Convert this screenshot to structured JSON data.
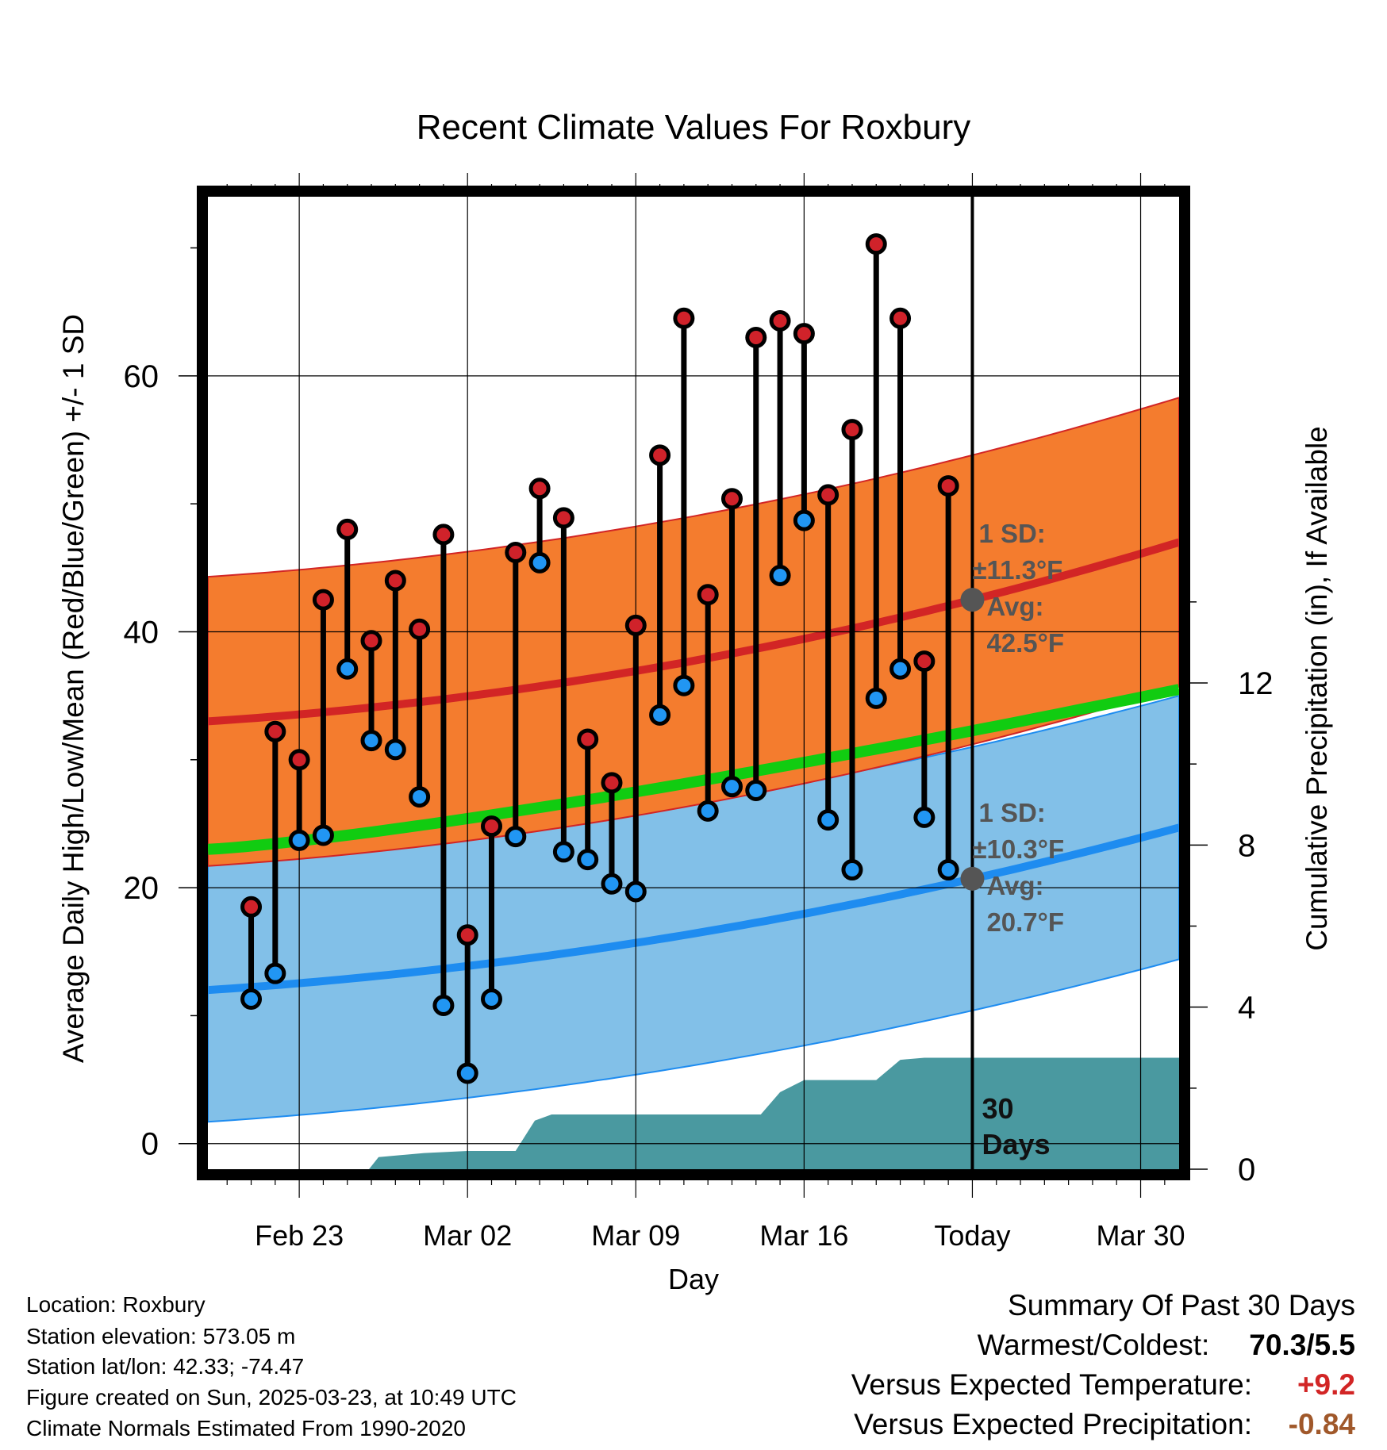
{
  "chart_data": {
    "type": "line",
    "title": "Recent Climate Values For Roxbury",
    "xlabel": "Day",
    "ylabel": "Average Daily High/Low/Mean (Red/Blue/Green) +/- 1 SD",
    "y2label": "Cumulative Precipitation (in), If Available",
    "x_ticks": [
      "Feb 23",
      "Mar 02",
      "Mar 09",
      "Mar 16",
      "Today",
      "Mar 30"
    ],
    "x_tick_days": [
      3,
      10,
      17,
      24,
      31,
      38
    ],
    "xlim": [
      -0.8,
      39.6
    ],
    "y_ticks": [
      "0",
      "20",
      "40",
      "60"
    ],
    "y_tick_values": [
      0,
      20,
      40,
      60
    ],
    "ylim": [
      -2,
      74
    ],
    "y2_ticks": [
      "0",
      "4",
      "8",
      "12"
    ],
    "y2_tick_values": [
      0,
      4,
      8,
      12
    ],
    "y2lim": [
      0,
      24
    ],
    "grid": true,
    "days": [
      1,
      2,
      3,
      4,
      5,
      6,
      7,
      8,
      9,
      10,
      11,
      12,
      13,
      14,
      15,
      16,
      17,
      18,
      19,
      20,
      21,
      22,
      23,
      24,
      25,
      26,
      27,
      28,
      29,
      30
    ],
    "highs": [
      18.5,
      32.2,
      30.0,
      42.5,
      48.0,
      39.3,
      44.0,
      40.2,
      47.6,
      16.3,
      24.8,
      46.2,
      51.2,
      48.9,
      31.6,
      28.2,
      40.5,
      53.8,
      64.5,
      42.9,
      50.4,
      63.0,
      64.3,
      63.3,
      50.7,
      55.8,
      70.3,
      64.5,
      37.7,
      51.4
    ],
    "lows": [
      11.3,
      13.3,
      23.7,
      24.1,
      37.1,
      31.5,
      30.8,
      27.1,
      10.8,
      5.5,
      11.3,
      24.0,
      45.4,
      22.8,
      22.2,
      20.3,
      19.7,
      33.5,
      35.8,
      26.0,
      27.9,
      27.6,
      44.4,
      48.7,
      25.3,
      21.4,
      34.8,
      37.1,
      25.5,
      21.4
    ],
    "normal_high": {
      "name": "Avg high",
      "start": 33.0,
      "today": 42.5,
      "end": 47.0
    },
    "normal_low": {
      "name": "Avg low",
      "start": 12.0,
      "today": 20.7,
      "end": 24.7
    },
    "normal_mean": {
      "start": 23.0,
      "end": 35.5
    },
    "high_sd": 11.3,
    "low_sd": 10.3,
    "precip_cumulative": {
      "days": [
        -0.8,
        5.9,
        6.3,
        8.2,
        10.0,
        12.0,
        12.8,
        13.5,
        22.2,
        23.0,
        24.0,
        25.0,
        27.0,
        28.0,
        29.0,
        30.0,
        31.0,
        39.6
      ],
      "values": [
        0.0,
        0.0,
        0.3,
        0.4,
        0.45,
        0.45,
        1.2,
        1.35,
        1.35,
        1.9,
        2.2,
        2.2,
        2.2,
        2.7,
        2.75,
        2.75,
        2.75,
        2.75
      ]
    },
    "today_day": 31,
    "high_annotation": [
      "1 SD:",
      "±11.3°F",
      "Avg:",
      "42.5°F"
    ],
    "low_annotation": [
      "1 SD:",
      "±10.3°F",
      "Avg:",
      "20.7°F"
    ],
    "window_label": [
      "30",
      "Days"
    ],
    "colors": {
      "high_band": "#f47c2e",
      "high_line": "#d22525",
      "low_band": "#82c0e8",
      "low_line": "#1e8cf0",
      "mean_line": "#11cc11",
      "precip": "#4a99a0",
      "high_dot": "#d0222a",
      "low_dot": "#2196f3",
      "annotation": "#555555"
    }
  },
  "footer": {
    "location": "Location: Roxbury",
    "elevation": "Station elevation: 573.05 m",
    "latlon": "Station lat/lon: 42.33; -74.47",
    "created": "Figure created on Sun, 2025-03-23, at 10:49 UTC",
    "normals": "Climate Normals Estimated From 1990-2020"
  },
  "summary": {
    "title": "Summary Of Past 30 Days",
    "warmest_coldest_label": "Warmest/Coldest:",
    "warmest_coldest_value": "70.3/5.5",
    "temp_label": "Versus Expected Temperature:",
    "temp_value": "+9.2",
    "temp_color": "#d22525",
    "precip_label": "Versus Expected Precipitation:",
    "precip_value": "-0.84",
    "precip_color": "#a0582a"
  }
}
